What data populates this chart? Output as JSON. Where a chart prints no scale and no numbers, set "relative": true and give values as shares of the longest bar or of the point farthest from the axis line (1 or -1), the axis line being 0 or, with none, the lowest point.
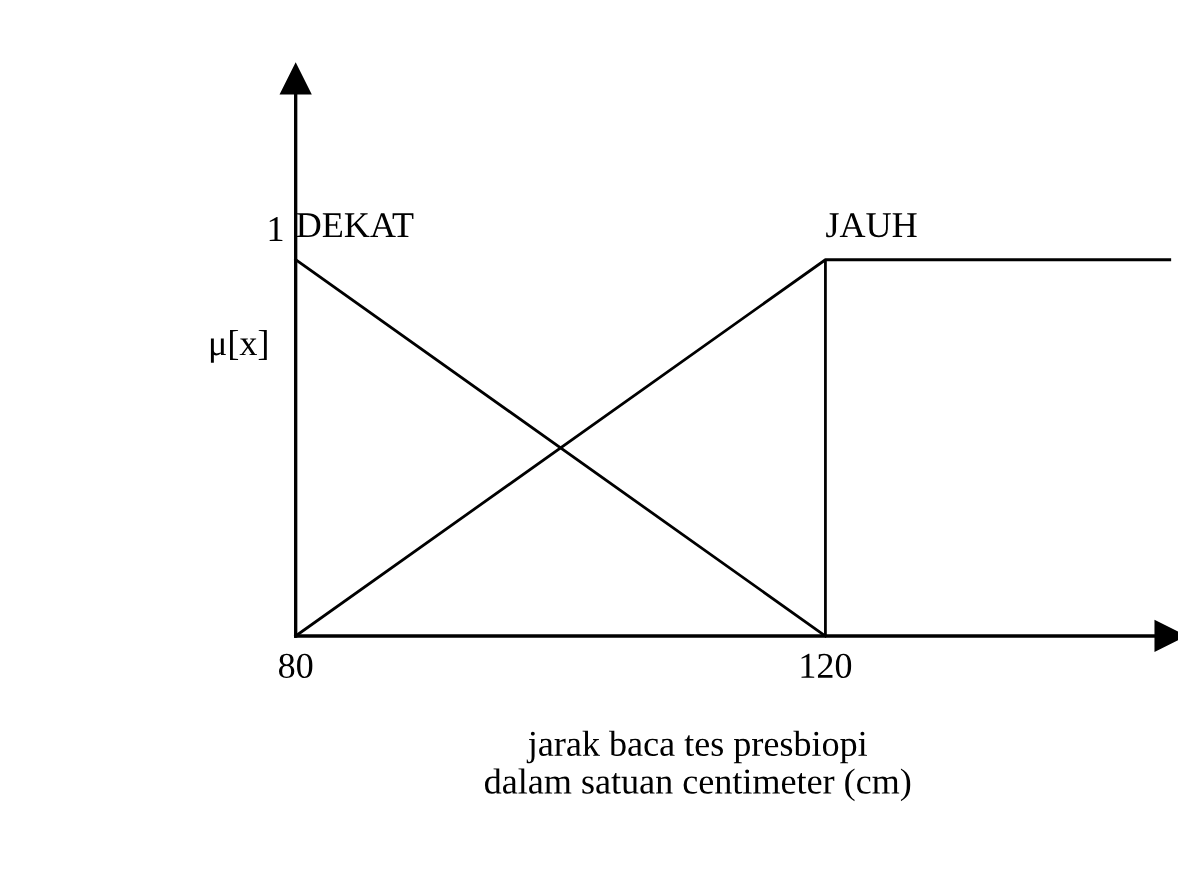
{
  "chart_data": {
    "type": "line",
    "xlabel": "jarak baca tes presbiopi\ndalam satuan centimeter (cm)",
    "ylabel": "μ[x]",
    "relative": true,
    "series": [
      {
        "name": "DEKAT",
        "color": "#000000",
        "x": [
          80,
          120
        ],
        "values": [
          1,
          0
        ]
      },
      {
        "name": "JAUH",
        "color": "#000000",
        "x": [
          80,
          120,
          146
        ],
        "values": [
          0,
          1,
          1
        ]
      }
    ],
    "ref_lines": [
      {
        "axis": "x",
        "value": 120,
        "color": "#000000"
      }
    ],
    "annotations": [
      {
        "text": "1",
        "x": 80,
        "y": 1
      }
    ],
    "xlim": [
      80,
      146
    ],
    "xticks": [
      80,
      120
    ],
    "grid": false,
    "legend": false,
    "marker": "none",
    "line_style": "solid"
  }
}
